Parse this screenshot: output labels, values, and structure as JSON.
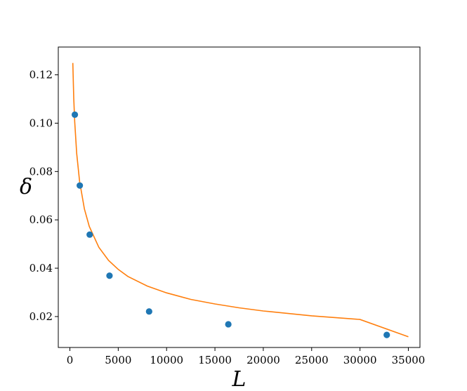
{
  "chart_data": {
    "type": "scatter",
    "title": "",
    "xlabel": "L",
    "ylabel": "δ",
    "xlim": [
      -1200,
      36200
    ],
    "ylim": [
      0.0072,
      0.1315
    ],
    "xticks": [
      0,
      5000,
      10000,
      15000,
      20000,
      25000,
      30000,
      35000
    ],
    "xtick_labels": [
      "0",
      "5000",
      "10000",
      "15000",
      "20000",
      "25000",
      "30000",
      "35000"
    ],
    "yticks": [
      0.02,
      0.04,
      0.06,
      0.08,
      0.1,
      0.12
    ],
    "ytick_labels": [
      "0.02",
      "0.04",
      "0.06",
      "0.08",
      "0.10",
      "0.12"
    ],
    "grid": false,
    "series": [
      {
        "kind": "scatter",
        "color": "#1f77b4",
        "x": [
          512,
          1024,
          2048,
          4096,
          8192,
          16384,
          32768
        ],
        "y": [
          0.1035,
          0.0742,
          0.0539,
          0.0369,
          0.0221,
          0.0168,
          0.0124
        ]
      },
      {
        "kind": "line",
        "color": "#ff7f0e",
        "x": [
          300,
          400,
          500,
          700,
          1000,
          1500,
          2000,
          3000,
          4000,
          5000,
          6000,
          8000,
          10000,
          12500,
          15000,
          17500,
          20000,
          25000,
          30000,
          35000
        ],
        "y": [
          0.1249,
          0.1104,
          0.1005,
          0.0875,
          0.076,
          0.0645,
          0.0573,
          0.0486,
          0.0432,
          0.0395,
          0.0366,
          0.0326,
          0.0298,
          0.0271,
          0.0252,
          0.0236,
          0.0223,
          0.0203,
          0.0188,
          0.0116
        ]
      }
    ]
  }
}
